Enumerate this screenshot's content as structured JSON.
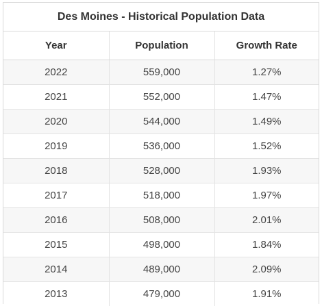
{
  "table": {
    "title": "Des Moines - Historical Population Data",
    "headers": [
      "Year",
      "Population",
      "Growth Rate"
    ],
    "rows": [
      [
        "2022",
        "559,000",
        "1.27%"
      ],
      [
        "2021",
        "552,000",
        "1.47%"
      ],
      [
        "2020",
        "544,000",
        "1.49%"
      ],
      [
        "2019",
        "536,000",
        "1.52%"
      ],
      [
        "2018",
        "528,000",
        "1.93%"
      ],
      [
        "2017",
        "518,000",
        "1.97%"
      ],
      [
        "2016",
        "508,000",
        "2.01%"
      ],
      [
        "2015",
        "498,000",
        "1.84%"
      ],
      [
        "2014",
        "489,000",
        "2.09%"
      ],
      [
        "2013",
        "479,000",
        "1.91%"
      ]
    ]
  },
  "colors": {
    "border": "#d9d9d9",
    "stripe": "#f7f7f7",
    "text": "#333333"
  }
}
